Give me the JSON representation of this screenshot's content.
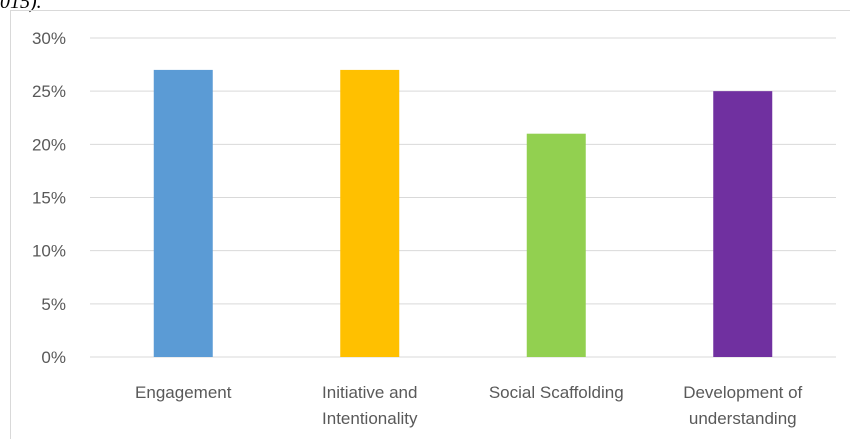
{
  "clipped_caption": "015).",
  "chart_data": {
    "type": "bar",
    "title": "",
    "xlabel": "",
    "ylabel": "",
    "ylim": [
      0,
      30
    ],
    "y_ticks": [
      "0%",
      "5%",
      "10%",
      "15%",
      "20%",
      "25%",
      "30%"
    ],
    "y_tick_values": [
      0,
      5,
      10,
      15,
      20,
      25,
      30
    ],
    "grid": true,
    "legend": "none",
    "categories": [
      [
        "Engagement"
      ],
      [
        "Initiative and",
        "Intentionality"
      ],
      [
        "Social Scaffolding"
      ],
      [
        "Development of",
        "understanding"
      ]
    ],
    "values": [
      27,
      27,
      21,
      25
    ],
    "colors": [
      "#5b9bd5",
      "#ffc000",
      "#92d050",
      "#7030a0"
    ],
    "grid_color": "#d9d9d9"
  }
}
